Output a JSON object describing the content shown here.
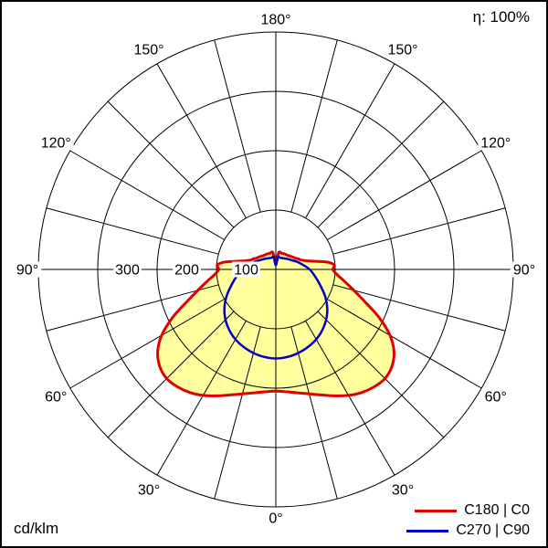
{
  "header": {
    "efficiency": "η: 100%"
  },
  "footer": {
    "unit": "cd/klm"
  },
  "legend": {
    "items": [
      {
        "label": "C180 | C0",
        "color": "#e10000"
      },
      {
        "label": "C270 | C90",
        "color": "#0000c8"
      }
    ]
  },
  "chart_data": {
    "type": "polar",
    "subtype": "photometric-luminous-intensity-distribution",
    "unit": "cd/klm",
    "efficiency_label": "η: 100%",
    "grid": {
      "color": "#000000",
      "angular_step_deg": 15
    },
    "radial_axis": {
      "ticks": [
        100,
        200,
        300
      ],
      "tick_labels": [
        "100",
        "200",
        "300"
      ],
      "max": 400
    },
    "angular_axis": {
      "labels": [
        "0°",
        "30°",
        "60°",
        "90°",
        "120°",
        "150°",
        "180°"
      ],
      "label_angles_deg": [
        0,
        30,
        60,
        90,
        120,
        150,
        180
      ],
      "convention": "0° at nadir (bottom), 180° at zenith (top), mirrored left/right"
    },
    "series": [
      {
        "name": "C180 | C0",
        "color": "#e10000",
        "fill": "#ffff9e",
        "filled": true,
        "symmetric": true,
        "gamma_deg": [
          0,
          5,
          10,
          15,
          20,
          25,
          30,
          35,
          40,
          45,
          50,
          55,
          60,
          65,
          70,
          75,
          80,
          85,
          90,
          94,
          98,
          103,
          110,
          115,
          120,
          130,
          140,
          150,
          160,
          170,
          180
        ],
        "intensity_cd_per_klm": [
          205,
          207,
          211,
          217,
          225,
          235,
          245,
          253,
          258,
          260,
          255,
          243,
          222,
          192,
          160,
          136,
          118,
          104,
          96,
          99,
          88,
          62,
          46,
          42,
          38,
          34,
          31,
          30,
          29,
          29,
          12
        ]
      },
      {
        "name": "C270 | C90",
        "color": "#0000c8",
        "fill": null,
        "filled": false,
        "symmetric": true,
        "gamma_deg": [
          0,
          10,
          20,
          30,
          40,
          50,
          60,
          70,
          80,
          90,
          100,
          110,
          120,
          130,
          140,
          150,
          160,
          170,
          180
        ],
        "intensity_cd_per_klm": [
          150,
          148,
          143,
          136,
          126,
          113,
          97,
          80,
          67,
          57,
          46,
          38,
          31,
          27,
          24,
          22,
          21,
          21,
          7
        ]
      }
    ]
  }
}
